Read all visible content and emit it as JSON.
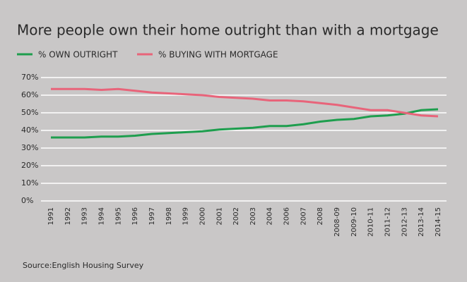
{
  "chart_data": {
    "type": "line",
    "title": "More people own their home outright than with a mortgage",
    "categories": [
      "1991",
      "1992",
      "1993",
      "1994",
      "1995",
      "1996",
      "1997",
      "1998",
      "1999",
      "2000",
      "2001",
      "2002",
      "2003",
      "2004",
      "2006",
      "2007",
      "2008",
      "2008-09",
      "2009-10",
      "2010-11",
      "2011-12",
      "2012-13",
      "2013-14",
      "2014-15"
    ],
    "series": [
      {
        "name": "% OWN OUTRIGHT",
        "color": "#1e9e4e",
        "values": [
          36,
          36,
          36,
          36.5,
          36.5,
          37,
          38,
          38.5,
          39,
          39.5,
          40.5,
          41,
          41.5,
          42.5,
          42.5,
          43.5,
          45,
          46,
          46.5,
          48,
          48.5,
          49.5,
          51.5,
          52
        ]
      },
      {
        "name": "% BUYING WITH MORTGAGE",
        "color": "#e8647a",
        "values": [
          63.5,
          63.5,
          63.5,
          63,
          63.5,
          62.5,
          61.5,
          61,
          60.5,
          60,
          59,
          58.5,
          58,
          57,
          57,
          56.5,
          55.5,
          54.5,
          53,
          51.5,
          51.5,
          50,
          48.5,
          48
        ]
      }
    ],
    "ylim": [
      0,
      70
    ],
    "yticks": [
      {
        "value": 0,
        "label": "0%"
      },
      {
        "value": 10,
        "label": "10%"
      },
      {
        "value": 20,
        "label": "20%"
      },
      {
        "value": 30,
        "label": "30%"
      },
      {
        "value": 40,
        "label": "40%"
      },
      {
        "value": 50,
        "label": "50%"
      },
      {
        "value": 60,
        "label": "60%"
      },
      {
        "value": 70,
        "label": "70%"
      }
    ],
    "grid": true,
    "legend": "top-left",
    "source": "Source:English Housing Survey"
  }
}
